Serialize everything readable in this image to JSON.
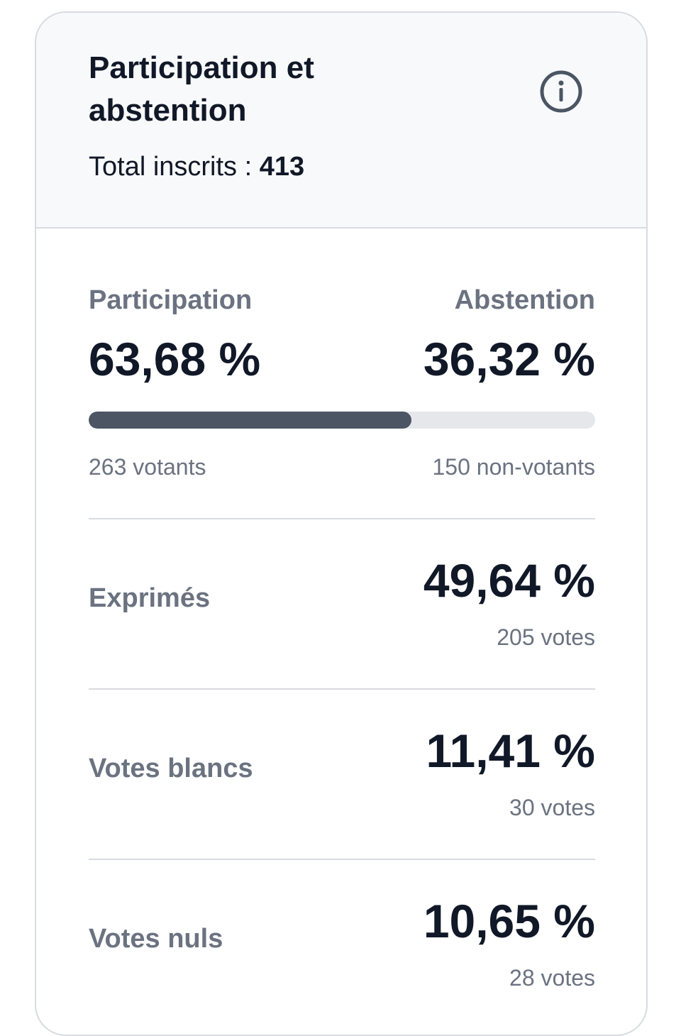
{
  "header": {
    "title": "Participation et abstention",
    "total_label": "Total inscrits :",
    "total_value": "413"
  },
  "participation": {
    "label": "Participation",
    "value": 63.68,
    "value_label": "63,68 %",
    "count": "263 votants"
  },
  "abstention": {
    "label": "Abstention",
    "value": 36.32,
    "value_label": "36,32 %",
    "count": "150 non-votants"
  },
  "rows": [
    {
      "label": "Exprimés",
      "value": "49,64 %",
      "count": "205 votes"
    },
    {
      "label": "Votes blancs",
      "value": "11,41 %",
      "count": "30 votes"
    },
    {
      "label": "Votes nuls",
      "value": "10,65 %",
      "count": "28 votes"
    }
  ]
}
